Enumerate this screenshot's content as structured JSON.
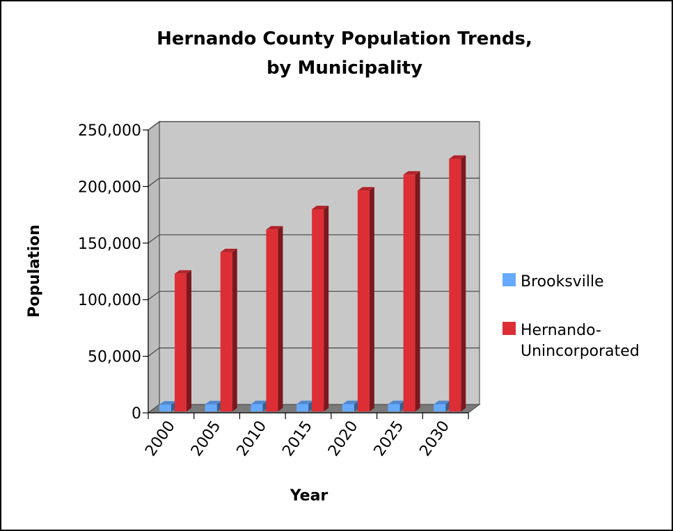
{
  "chart_data": {
    "type": "bar",
    "title": [
      "Hernando County Population Trends,",
      "by Municipality"
    ],
    "xlabel": "Year",
    "ylabel": "Population",
    "categories": [
      "2000",
      "2005",
      "2010",
      "2015",
      "2020",
      "2025",
      "2030"
    ],
    "series": [
      {
        "name": "Brooksville",
        "color": "#66aaff",
        "values": [
          7300,
          7600,
          7700,
          7700,
          7700,
          7700,
          7700
        ]
      },
      {
        "name": "Hernando-Unincorporated",
        "color": "#dd2e36",
        "values": [
          123000,
          142000,
          162000,
          180000,
          196500,
          210500,
          224500
        ]
      }
    ],
    "ylim": [
      0,
      250000
    ],
    "yticks": [
      0,
      50000,
      100000,
      150000,
      200000,
      250000
    ],
    "ytick_labels": [
      "0",
      "50,000",
      "100,000",
      "150,000",
      "200,000",
      "250,000"
    ],
    "grid": true,
    "legend_position": "right",
    "style": "3d-column"
  }
}
